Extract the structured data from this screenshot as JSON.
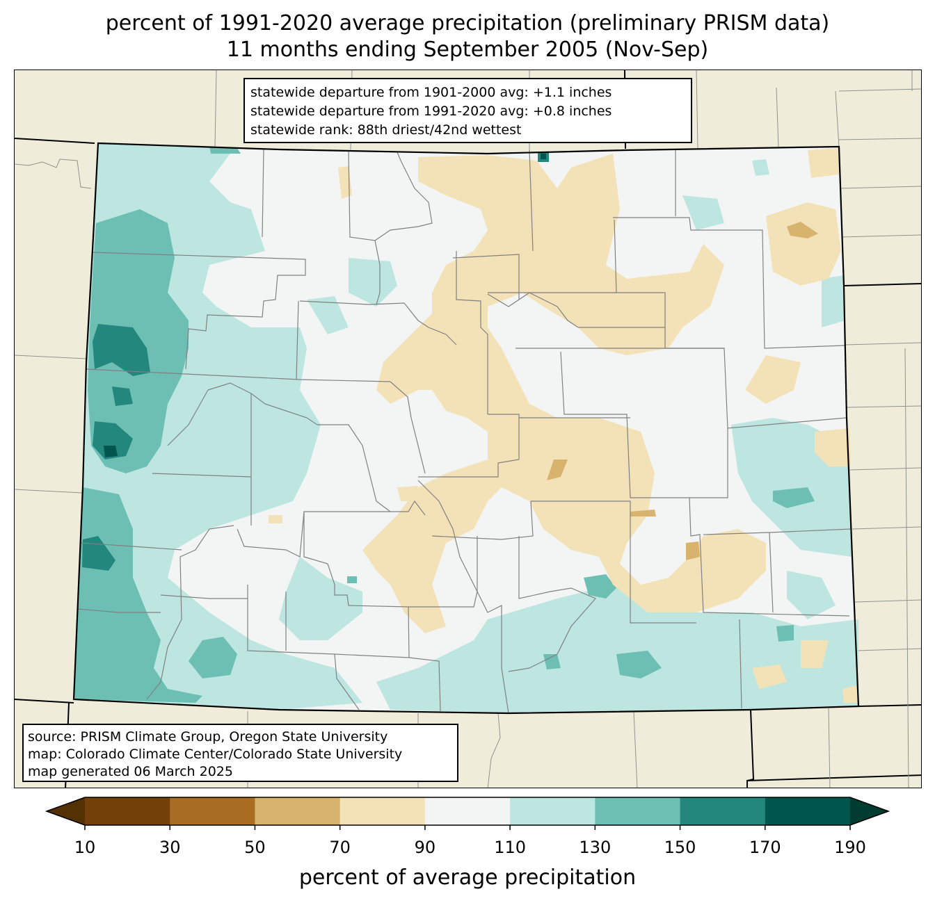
{
  "title": {
    "line1": "percent of 1991-2020 average precipitation (preliminary PRISM data)",
    "line2": "11 months ending September 2005 (Nov-Sep)"
  },
  "stats": {
    "line1": "statewide departure from 1901-2000 avg: +1.1 inches",
    "line2": "statewide departure from 1991-2020 avg: +0.8 inches",
    "line3": "statewide rank: 88th driest/42nd wettest"
  },
  "source": {
    "line1": "source: PRISM Climate Group, Oregon State University",
    "line2": "map: Colorado Climate Center/Colorado State University",
    "line3": "map generated 06 March 2025"
  },
  "colorbar": {
    "label": "percent of average precipitation",
    "ticks": [
      "10",
      "30",
      "50",
      "70",
      "90",
      "110",
      "130",
      "150",
      "170",
      "190"
    ],
    "under_color": "#543005",
    "over_color": "#003c30",
    "bin_colors": [
      "#73400a",
      "#a86c22",
      "#d8b36e",
      "#f3e2b8",
      "#f3f5f4",
      "#bde6e1",
      "#6dbfb3",
      "#23877e",
      "#00564d"
    ]
  },
  "colors": {
    "background": "#efedda",
    "county_lines": "#808080",
    "state_lines": "#000000"
  }
}
